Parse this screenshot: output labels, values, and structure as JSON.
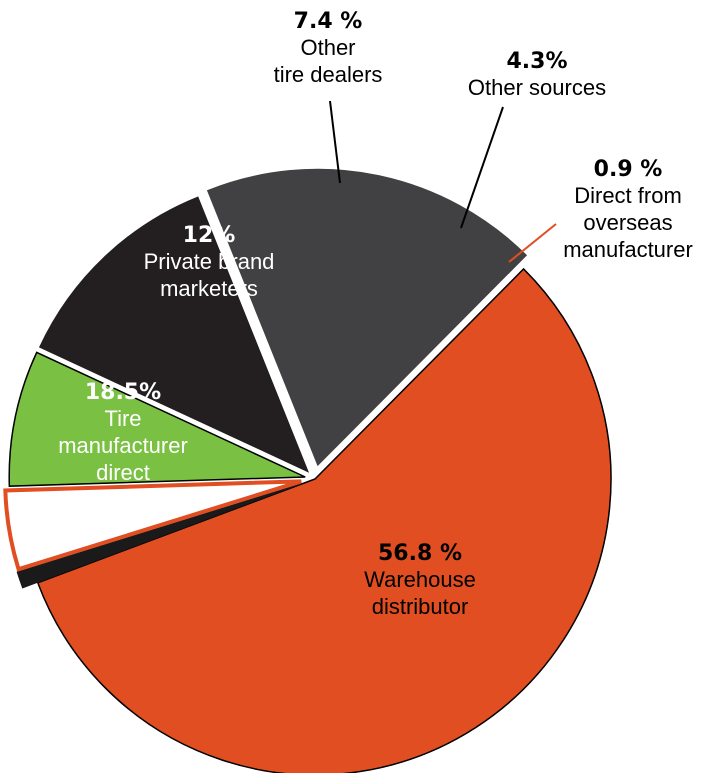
{
  "chart_data": {
    "type": "pie",
    "title": "",
    "slices": [
      {
        "percent_label": "56.8 %",
        "value": 56.8,
        "label_lines": [
          "Warehouse",
          "distributor"
        ],
        "color": "#e04e22",
        "stroke": "#000000",
        "text_color": "#000000",
        "exploded": false
      },
      {
        "percent_label": "0.9 %",
        "value": 0.9,
        "label_lines": [
          "Direct from",
          "overseas",
          "manufacturer"
        ],
        "color": "#1a1a1a",
        "stroke": "#1a1a1a",
        "text_color": "#000000",
        "exploded": true
      },
      {
        "percent_label": "4.3%",
        "value": 4.3,
        "label_lines": [
          "Other sources"
        ],
        "color": "#ffffff",
        "stroke": "#e04e22",
        "text_color": "#000000",
        "exploded": true
      },
      {
        "percent_label": "7.4 %",
        "value": 7.4,
        "label_lines": [
          "Other",
          "tire dealers"
        ],
        "color": "#7ac143",
        "stroke": "#000000",
        "text_color": "#000000",
        "exploded": true
      },
      {
        "percent_label": "12%",
        "value": 12,
        "label_lines": [
          "Private brand",
          "marketers"
        ],
        "color": "#231f20",
        "stroke": "#231f20",
        "text_color": "#ffffff",
        "exploded": true
      },
      {
        "percent_label": "18.5%",
        "value": 18.5,
        "label_lines": [
          "Tire",
          "manufacturer",
          "direct"
        ],
        "color": "#414143",
        "stroke": "#414143",
        "text_color": "#ffffff",
        "exploded": true
      }
    ]
  }
}
